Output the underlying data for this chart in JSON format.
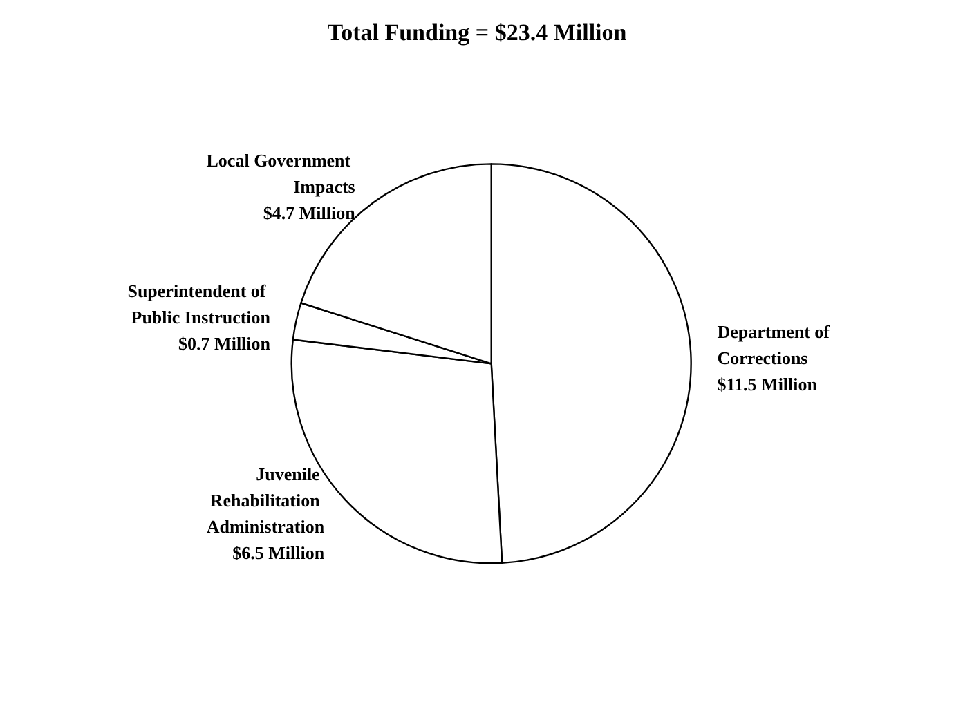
{
  "chart_data": {
    "type": "pie",
    "title": "Total Funding = $23.4 Million",
    "categories": [
      "Department of Corrections",
      "Juvenile Rehabilitation Administration",
      "Superintendent of Public Instruction",
      "Local Government Impacts"
    ],
    "values": [
      11.5,
      6.5,
      0.7,
      4.7
    ],
    "value_labels": [
      "$11.5 Million",
      "$6.5 Million",
      "$0.7 Million",
      "$4.7 Million"
    ],
    "colors": [
      "#ffffff",
      "#ffffff",
      "#ffffff",
      "#ffffff"
    ],
    "legend": false
  }
}
